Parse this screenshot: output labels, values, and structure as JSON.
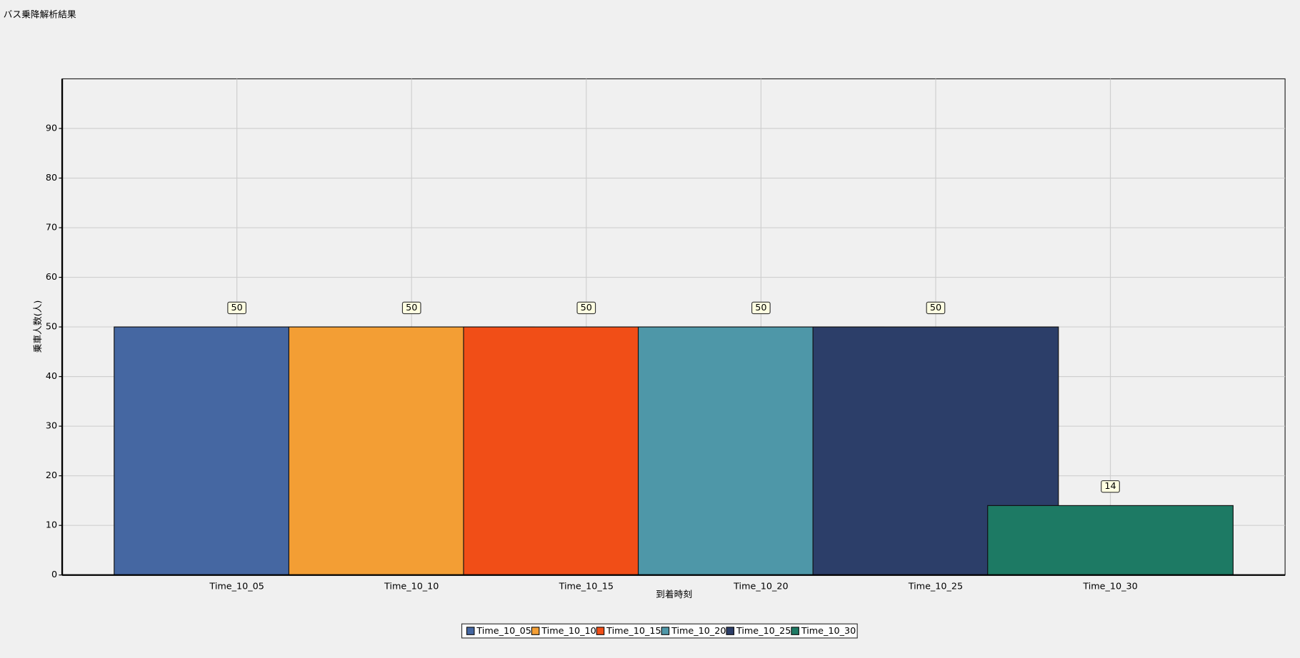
{
  "chart_data": {
    "type": "bar",
    "title": "バス乗降解析結果",
    "x_label": "到着時刻",
    "y_label": "乗車人数(人)",
    "categories": [
      "Time_10_05",
      "Time_10_10",
      "Time_10_15",
      "Time_10_20",
      "Time_10_25",
      "Time_10_30"
    ],
    "values": [
      50,
      50,
      50,
      50,
      50,
      14
    ],
    "colors": [
      "#4567a2",
      "#f39e34",
      "#f14e17",
      "#4e97a8",
      "#2c3e69",
      "#1d7a64"
    ],
    "ylim": [
      0,
      100
    ],
    "yticks": [
      0,
      10,
      20,
      30,
      40,
      50,
      60,
      70,
      80,
      90
    ],
    "grid": true
  }
}
